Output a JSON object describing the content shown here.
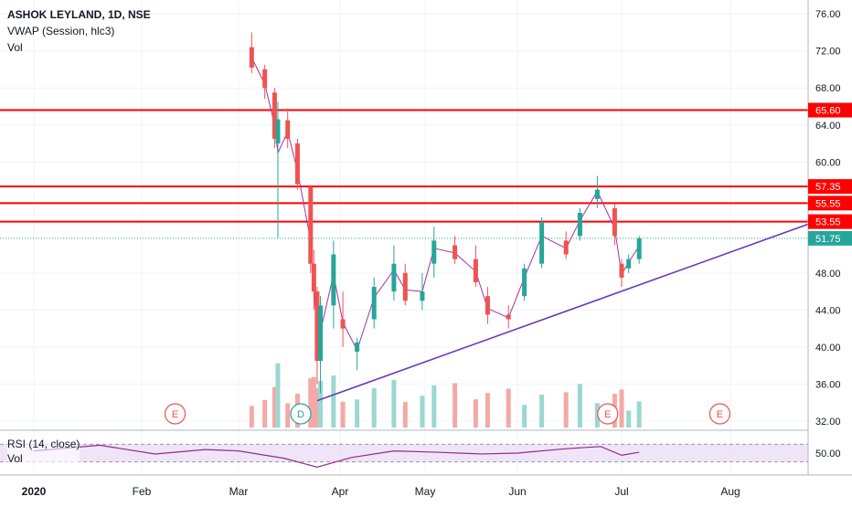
{
  "header": {
    "symbol": "ASHOK LEYLAND, 1D, NSE",
    "vwap_label": "VWAP (Session, hlc3)",
    "vol_label": "Vol"
  },
  "rsi_pane": {
    "label": "RSI (14, close)",
    "vol_label": "Vol",
    "value_tick": "50.00"
  },
  "colors": {
    "up": "#26a69a",
    "down": "#ef5350",
    "vol_up": "#9ad8d1",
    "vol_down": "#f4a9a6",
    "level": "#ff0000",
    "trend": "#673ab7",
    "rsi_line": "#8e2c8e",
    "rsi_band": "#e9d9f6",
    "vwap": "#a62fa6",
    "last_price": "#26a69a"
  },
  "chart_data": {
    "type": "candlestick",
    "title": "ASHOK LEYLAND, 1D, NSE",
    "y_axis_ticks": [
      76,
      72,
      68,
      64,
      60,
      48,
      44,
      40,
      36,
      32
    ],
    "y_axis_tick_labels": [
      "76.00",
      "72.00",
      "68.00",
      "64.00",
      "60.00",
      "48.00",
      "44.00",
      "40.00",
      "36.00",
      "32.00"
    ],
    "ylim": [
      31.3,
      77.5
    ],
    "x_axis_labels": [
      "2020",
      "Feb",
      "Mar",
      "Apr",
      "May",
      "Jun",
      "Jul",
      "Aug"
    ],
    "horizontal_levels": [
      {
        "label": "65.60",
        "value": 65.6
      },
      {
        "label": "57.35",
        "value": 57.35
      },
      {
        "label": "55.55",
        "value": 55.55
      },
      {
        "label": "53.55",
        "value": 53.55
      }
    ],
    "last_price": {
      "label": "51.75",
      "value": 51.75
    },
    "trendline": {
      "from": {
        "date": "2020-03-25",
        "value": 34.2
      },
      "to": {
        "date": "2020-08-27",
        "value": 53.8
      }
    },
    "earnings_markers": [
      {
        "label": "E",
        "date": "2020-02-11"
      },
      {
        "label": "D",
        "date": "2020-03-20"
      },
      {
        "label": "E",
        "date": "2020-06-27"
      },
      {
        "label": "E",
        "date": "2020-07-29"
      }
    ],
    "candles": [
      {
        "date": "2020-03-05",
        "o": 72.4,
        "h": 74.0,
        "l": 69.6,
        "c": 70.2
      },
      {
        "date": "2020-03-09",
        "o": 70.0,
        "h": 70.5,
        "l": 66.8,
        "c": 68.0
      },
      {
        "date": "2020-03-12",
        "o": 67.5,
        "h": 68.0,
        "l": 61.5,
        "c": 62.5
      },
      {
        "date": "2020-03-13",
        "o": 62.0,
        "h": 66.5,
        "l": 51.8,
        "c": 64.6
      },
      {
        "date": "2020-03-16",
        "o": 64.5,
        "h": 65.8,
        "l": 61.5,
        "c": 62.5
      },
      {
        "date": "2020-03-19",
        "o": 62.0,
        "h": 62.5,
        "l": 57.0,
        "c": 57.6
      },
      {
        "date": "2020-03-23",
        "o": 57.3,
        "h": 57.5,
        "l": 48.0,
        "c": 49.0
      },
      {
        "date": "2020-03-24",
        "o": 49.0,
        "h": 50.5,
        "l": 44.0,
        "c": 46.0
      },
      {
        "date": "2020-03-25",
        "o": 46.0,
        "h": 46.5,
        "l": 36.0,
        "c": 38.5
      },
      {
        "date": "2020-03-26",
        "o": 38.5,
        "h": 45.5,
        "l": 35.0,
        "c": 44.5
      },
      {
        "date": "2020-03-30",
        "o": 44.5,
        "h": 51.5,
        "l": 42.0,
        "c": 50.0
      },
      {
        "date": "2020-04-02",
        "o": 43.0,
        "h": 46.0,
        "l": 40.0,
        "c": 42.0
      },
      {
        "date": "2020-04-07",
        "o": 39.5,
        "h": 41.0,
        "l": 37.5,
        "c": 40.5
      },
      {
        "date": "2020-04-13",
        "o": 43.0,
        "h": 47.5,
        "l": 42.0,
        "c": 46.5
      },
      {
        "date": "2020-04-20",
        "o": 46.0,
        "h": 51.0,
        "l": 45.0,
        "c": 49.0
      },
      {
        "date": "2020-04-24",
        "o": 48.0,
        "h": 49.0,
        "l": 44.5,
        "c": 45.0
      },
      {
        "date": "2020-04-30",
        "o": 45.0,
        "h": 48.0,
        "l": 44.0,
        "c": 46.0
      },
      {
        "date": "2020-05-04",
        "o": 49.0,
        "h": 53.0,
        "l": 47.5,
        "c": 51.5
      },
      {
        "date": "2020-05-11",
        "o": 51.0,
        "h": 52.0,
        "l": 49.0,
        "c": 49.5
      },
      {
        "date": "2020-05-18",
        "o": 49.5,
        "h": 51.0,
        "l": 46.5,
        "c": 47.0
      },
      {
        "date": "2020-05-22",
        "o": 45.5,
        "h": 46.5,
        "l": 42.5,
        "c": 43.5
      },
      {
        "date": "2020-05-29",
        "o": 43.5,
        "h": 44.5,
        "l": 42.0,
        "c": 43.0
      },
      {
        "date": "2020-06-03",
        "o": 45.5,
        "h": 49.0,
        "l": 45.0,
        "c": 48.5
      },
      {
        "date": "2020-06-08",
        "o": 49.0,
        "h": 54.0,
        "l": 48.5,
        "c": 53.5
      },
      {
        "date": "2020-06-15",
        "o": 51.5,
        "h": 52.5,
        "l": 49.5,
        "c": 50.0
      },
      {
        "date": "2020-06-19",
        "o": 52.0,
        "h": 55.0,
        "l": 51.5,
        "c": 54.5
      },
      {
        "date": "2020-06-24",
        "o": 56.0,
        "h": 58.5,
        "l": 55.0,
        "c": 57.0
      },
      {
        "date": "2020-06-29",
        "o": 55.0,
        "h": 55.5,
        "l": 51.0,
        "c": 52.0
      },
      {
        "date": "2020-07-01",
        "o": 49.0,
        "h": 49.5,
        "l": 46.5,
        "c": 47.5
      },
      {
        "date": "2020-07-03",
        "o": 48.5,
        "h": 50.0,
        "l": 48.0,
        "c": 49.5
      },
      {
        "date": "2020-07-06",
        "o": 49.5,
        "h": 52.0,
        "l": 49.0,
        "c": 51.75
      }
    ],
    "rsi": {
      "label": "RSI (14, close)",
      "tick": "50.00",
      "band": [
        30,
        70
      ],
      "dates": [
        "2020-01-01",
        "2020-01-20",
        "2020-02-05",
        "2020-02-20",
        "2020-03-01",
        "2020-03-15",
        "2020-03-25",
        "2020-04-05",
        "2020-04-20",
        "2020-05-05",
        "2020-05-20",
        "2020-06-01",
        "2020-06-15",
        "2020-06-25",
        "2020-07-01",
        "2020-07-06"
      ],
      "values": [
        55,
        68,
        48,
        58,
        55,
        38,
        18,
        40,
        55,
        52,
        48,
        50,
        60,
        65,
        45,
        52
      ]
    }
  }
}
